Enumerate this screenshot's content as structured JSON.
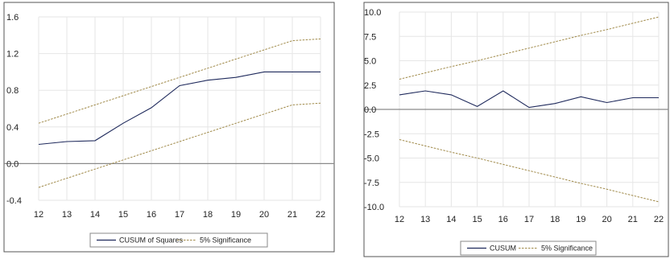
{
  "chart_data": [
    {
      "type": "line",
      "title": "",
      "xlabel": "",
      "ylabel": "",
      "x": [
        12,
        13,
        14,
        15,
        16,
        17,
        18,
        19,
        20,
        21,
        22
      ],
      "x_tick_labels": [
        "12",
        "13",
        "14",
        "15",
        "16",
        "17",
        "18",
        "19",
        "20",
        "21",
        "22"
      ],
      "y_tick_labels": [
        "1.6",
        "1.2",
        "0.8",
        "0.4",
        "0.0",
        "-0.4"
      ],
      "ylim": [
        -0.4,
        1.6
      ],
      "y_ticks": [
        1.6,
        1.2,
        0.8,
        0.4,
        0.0,
        -0.4
      ],
      "grid": true,
      "zero_line": true,
      "legend_position": "bottom-center",
      "series": [
        {
          "name": "CUSUM of Squares",
          "style": "solid",
          "color": "#1f2a5c",
          "values": [
            0.21,
            0.24,
            0.25,
            0.44,
            0.61,
            0.85,
            0.91,
            0.94,
            1.0,
            1.0,
            1.0
          ]
        },
        {
          "name": "5% Significance",
          "style": "dashed",
          "color": "#a08a4a",
          "values": [
            0.44,
            0.54,
            0.64,
            0.74,
            0.84,
            0.94,
            1.04,
            1.14,
            1.24,
            1.34,
            1.36
          ]
        },
        {
          "name": "",
          "style": "dashed",
          "color": "#a08a4a",
          "values": [
            -0.26,
            -0.16,
            -0.06,
            0.04,
            0.14,
            0.24,
            0.34,
            0.44,
            0.54,
            0.64,
            0.66
          ]
        }
      ],
      "legend": [
        "CUSUM of Squares",
        "5% Significance"
      ]
    },
    {
      "type": "line",
      "title": "",
      "xlabel": "",
      "ylabel": "",
      "x": [
        12,
        13,
        14,
        15,
        16,
        17,
        18,
        19,
        20,
        21,
        22
      ],
      "x_tick_labels": [
        "12",
        "13",
        "14",
        "15",
        "16",
        "17",
        "18",
        "19",
        "20",
        "21",
        "22"
      ],
      "y_tick_labels": [
        "10.0",
        "7.5",
        "5.0",
        "2.5",
        "0.0",
        "-2.5",
        "-5.0",
        "-7.5",
        "-10.0"
      ],
      "ylim": [
        -10,
        10
      ],
      "y_ticks": [
        10,
        7.5,
        5,
        2.5,
        0,
        -2.5,
        -5,
        -7.5,
        -10
      ],
      "grid": true,
      "zero_line": true,
      "legend_position": "bottom-center",
      "series": [
        {
          "name": "CUSUM",
          "style": "solid",
          "color": "#1f2a5c",
          "values": [
            1.5,
            1.9,
            1.5,
            0.3,
            1.9,
            0.2,
            0.6,
            1.3,
            0.7,
            1.2,
            1.2
          ]
        },
        {
          "name": "5% Significance",
          "style": "dashed",
          "color": "#a08a4a",
          "values": [
            3.1,
            3.75,
            4.4,
            5.0,
            5.65,
            6.3,
            6.95,
            7.6,
            8.2,
            8.85,
            9.5
          ]
        },
        {
          "name": "",
          "style": "dashed",
          "color": "#a08a4a",
          "values": [
            -3.1,
            -3.75,
            -4.4,
            -5.0,
            -5.65,
            -6.3,
            -6.95,
            -7.6,
            -8.2,
            -8.85,
            -9.5
          ]
        }
      ],
      "legend": [
        "CUSUM",
        "5% Significance"
      ]
    }
  ]
}
